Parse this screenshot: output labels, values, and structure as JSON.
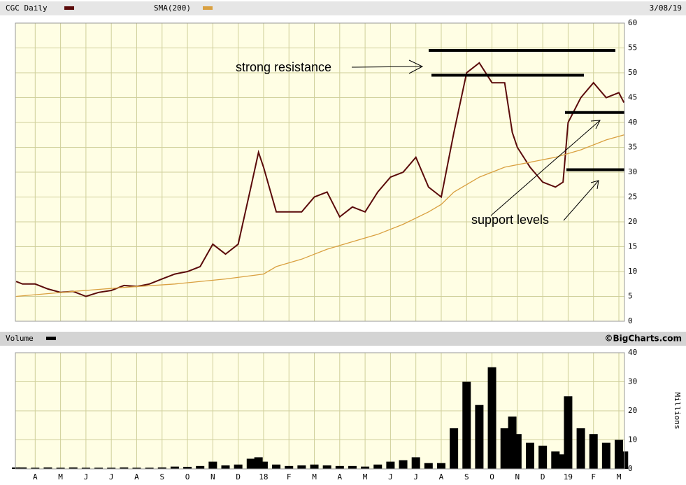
{
  "chart_data": [
    {
      "type": "line",
      "date_label": "3/08/19",
      "xlim": [
        -0.28,
        23.72
      ],
      "ylim": [
        0,
        60
      ],
      "yticks": [
        0,
        5,
        10,
        15,
        20,
        25,
        30,
        35,
        40,
        45,
        50,
        55,
        60
      ],
      "grid": true,
      "series": [
        {
          "name": "CGC Daily",
          "color": "#5a0a0a",
          "x": [
            -0.25,
            0,
            0.5,
            1,
            1.5,
            2,
            2.5,
            3,
            3.5,
            4,
            4.5,
            5,
            5.5,
            6,
            6.5,
            7,
            7.5,
            8,
            8.5,
            9,
            9.3,
            9.5,
            10,
            10.5,
            11,
            11.5,
            12,
            12.5,
            13,
            13.5,
            14,
            14.5,
            15,
            15.5,
            16,
            16.5,
            17,
            17.5,
            18,
            18.5,
            19,
            19.3,
            19.5,
            20,
            20.5,
            21,
            21.3,
            21.5,
            22,
            22.5,
            23,
            23.5,
            23.7
          ],
          "values": [
            8,
            7.5,
            7.5,
            6.5,
            5.8,
            6,
            5,
            5.8,
            6.2,
            7.2,
            7,
            7.5,
            8.5,
            9.5,
            10,
            11,
            15.5,
            13.5,
            15.5,
            27,
            34,
            31,
            22,
            22,
            22,
            25,
            26,
            21,
            23,
            22,
            26,
            29,
            30,
            33,
            27,
            25,
            38,
            50,
            52,
            48,
            48,
            38,
            35,
            31,
            28,
            27,
            28,
            40,
            45,
            48,
            45,
            46,
            44
          ]
        },
        {
          "name": "SMA(200)",
          "color": "#d9a040",
          "x": [
            -0.25,
            2,
            4,
            6,
            8,
            9.5,
            10,
            11,
            12,
            13,
            14,
            15,
            16,
            16.5,
            17,
            18,
            19,
            20,
            21,
            22,
            23,
            23.7
          ],
          "values": [
            5,
            6,
            6.8,
            7.5,
            8.5,
            9.5,
            11,
            12.5,
            14.5,
            16,
            17.5,
            19.5,
            22,
            23.5,
            26,
            29,
            31,
            32,
            33,
            34.5,
            36.5,
            37.5
          ]
        }
      ],
      "levels": [
        54.5,
        49.5,
        42,
        30.5
      ],
      "annotations": [
        "strong resistance",
        "support levels"
      ]
    },
    {
      "type": "bar",
      "credit": "©BigCharts.com",
      "y_label": "Millions",
      "xlim": [
        -0.28,
        23.72
      ],
      "ylim": [
        0,
        40
      ],
      "yticks": [
        0,
        10,
        20,
        30,
        40
      ],
      "grid": true,
      "xticks": [
        {
          "value": 0.5,
          "label": "A"
        },
        {
          "value": 1.5,
          "label": "M"
        },
        {
          "value": 2.5,
          "label": "J"
        },
        {
          "value": 3.5,
          "label": "J"
        },
        {
          "value": 4.5,
          "label": "A"
        },
        {
          "value": 5.5,
          "label": "S"
        },
        {
          "value": 6.5,
          "label": "O"
        },
        {
          "value": 7.5,
          "label": "N"
        },
        {
          "value": 8.5,
          "label": "D"
        },
        {
          "value": 9.5,
          "label": "18"
        },
        {
          "value": 10.5,
          "label": "F"
        },
        {
          "value": 11.5,
          "label": "M"
        },
        {
          "value": 12.5,
          "label": "A"
        },
        {
          "value": 13.5,
          "label": "M"
        },
        {
          "value": 14.5,
          "label": "J"
        },
        {
          "value": 15.5,
          "label": "J"
        },
        {
          "value": 16.5,
          "label": "A"
        },
        {
          "value": 17.5,
          "label": "S"
        },
        {
          "value": 18.5,
          "label": "O"
        },
        {
          "value": 19.5,
          "label": "N"
        },
        {
          "value": 20.5,
          "label": "D"
        },
        {
          "value": 21.5,
          "label": "19"
        },
        {
          "value": 22.5,
          "label": "F"
        },
        {
          "value": 23.5,
          "label": "M"
        }
      ],
      "series": [
        {
          "name": "Volume",
          "color": "#000000",
          "x": [
            -0.25,
            0,
            0.5,
            1,
            1.5,
            2,
            2.5,
            3,
            3.5,
            4,
            4.5,
            5,
            5.5,
            6,
            6.5,
            7,
            7.5,
            8,
            8.5,
            9,
            9.3,
            9.5,
            10,
            10.5,
            11,
            11.5,
            12,
            12.5,
            13,
            13.5,
            14,
            14.5,
            15,
            15.5,
            16,
            16.5,
            17,
            17.5,
            18,
            18.5,
            19,
            19.3,
            19.5,
            20,
            20.5,
            21,
            21.3,
            21.5,
            22,
            22.5,
            23,
            23.5,
            23.7
          ],
          "values": [
            0.5,
            0.5,
            0.4,
            0.5,
            0.4,
            0.5,
            0.4,
            0.4,
            0.4,
            0.5,
            0.4,
            0.4,
            0.5,
            0.8,
            0.7,
            1,
            2.5,
            1.2,
            1.5,
            3.5,
            4,
            2.5,
            1.5,
            1,
            1.2,
            1.5,
            1.2,
            1,
            1,
            0.8,
            1.5,
            2.5,
            3,
            4,
            2,
            2,
            14,
            30,
            22,
            35,
            14,
            18,
            12,
            9,
            8,
            6,
            5,
            25,
            14,
            12,
            9,
            10,
            6
          ]
        }
      ]
    }
  ]
}
